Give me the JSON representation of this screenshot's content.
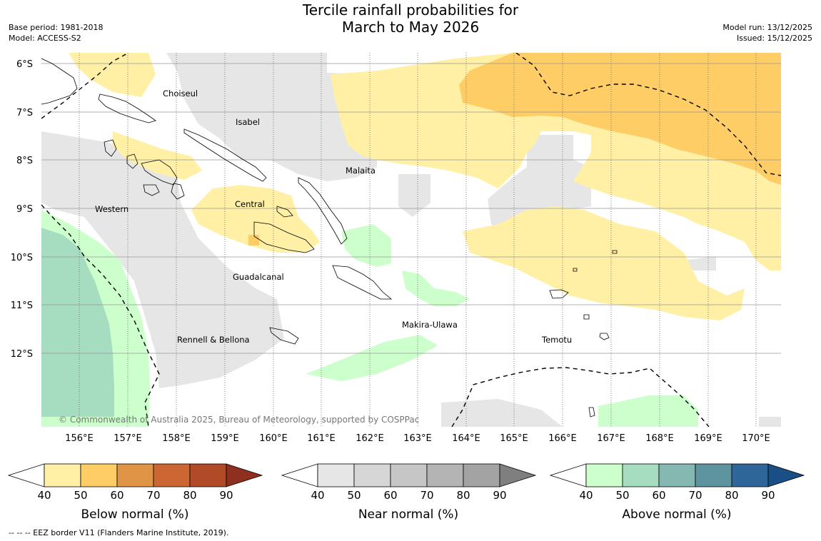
{
  "title": {
    "line1": "Tercile rainfall probabilities for",
    "line2": "March to May 2026"
  },
  "meta_left": {
    "base_period": "Base period: 1981-2018",
    "model": "Model: ACCESS-S2"
  },
  "meta_right": {
    "model_run": "Model run: 13/12/2025",
    "issued": "Issued: 15/12/2025"
  },
  "map": {
    "lat_labels": [
      "6°S",
      "7°S",
      "8°S",
      "9°S",
      "10°S",
      "11°S",
      "12°S"
    ],
    "lon_labels": [
      "156°E",
      "157°E",
      "158°E",
      "159°E",
      "160°E",
      "161°E",
      "162°E",
      "163°E",
      "164°E",
      "165°E",
      "166°E",
      "167°E",
      "168°E",
      "169°E",
      "170°E"
    ],
    "regions": [
      "Choiseul",
      "Isabel",
      "Malaita",
      "Central",
      "Western",
      "Guadalcanal",
      "Makira-Ulawa",
      "Rennell & Bellona",
      "Temotu"
    ],
    "copyright": "© Commonwealth of Australia 2025, Bureau of Meteorology, supported by COSPPac"
  },
  "colorbars": [
    {
      "title": "Below normal (%)",
      "ticks": [
        "40",
        "50",
        "60",
        "70",
        "80",
        "90"
      ],
      "colors": [
        "#fff0a6",
        "#ffcd66",
        "#e09445",
        "#cc6633",
        "#b04a27",
        "#8f2f1f"
      ]
    },
    {
      "title": "Near normal (%)",
      "ticks": [
        "40",
        "50",
        "60",
        "70",
        "80",
        "90"
      ],
      "colors": [
        "#e6e6e6",
        "#d6d6d6",
        "#c6c6c6",
        "#b4b4b4",
        "#a3a3a3",
        "#7f7f7f"
      ]
    },
    {
      "title": "Above normal (%)",
      "ticks": [
        "40",
        "50",
        "60",
        "70",
        "80",
        "90"
      ],
      "colors": [
        "#ccffcc",
        "#a6dcc0",
        "#85b8b0",
        "#5e93a0",
        "#2f6699",
        "#1a4f85"
      ]
    }
  ],
  "footnote": "--  --  -- EEZ border V11 (Flanders Marine Institute, 2019).",
  "colors": {
    "below_50": "#fff0a6",
    "below_60": "#ffcd66",
    "near_40": "#e6e6e6",
    "above_40": "#ccffcc",
    "above_50": "#a6dcc0"
  }
}
